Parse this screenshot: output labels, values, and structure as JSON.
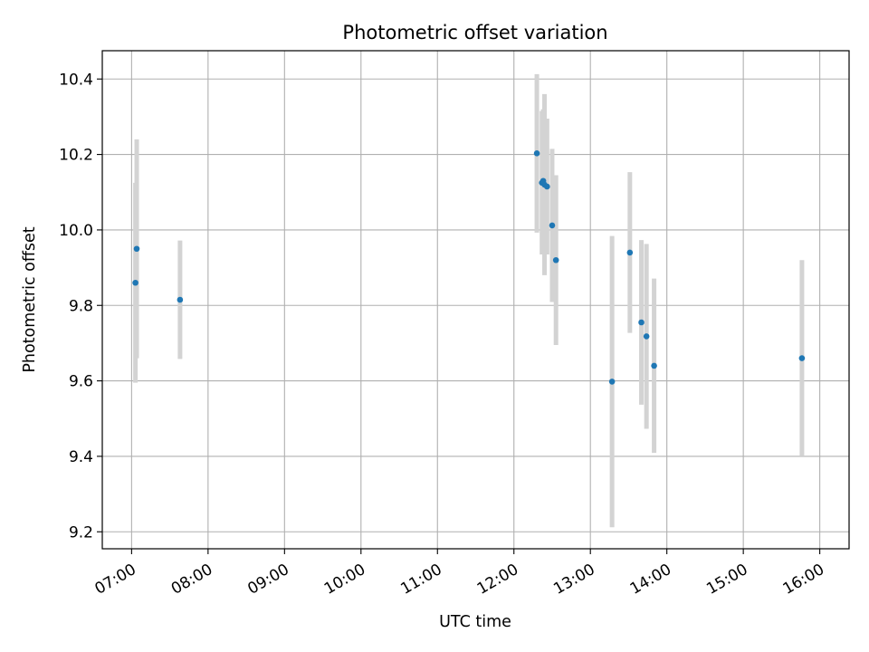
{
  "chart_data": {
    "type": "scatter",
    "title": "Photometric offset variation",
    "xlabel": "UTC time",
    "ylabel": "Photometric offset",
    "xlim": [
      "06:37",
      "16:23"
    ],
    "ylim": [
      9.155,
      10.475
    ],
    "x_ticks": [
      "07:00",
      "08:00",
      "09:00",
      "10:00",
      "11:00",
      "12:00",
      "13:00",
      "14:00",
      "15:00",
      "16:00"
    ],
    "y_ticks": [
      9.2,
      9.4,
      9.6,
      9.8,
      10.0,
      10.2,
      10.4
    ],
    "y_tick_labels": [
      "9.2",
      "9.4",
      "9.6",
      "9.8",
      "10.0",
      "10.2",
      "10.4"
    ],
    "grid": true,
    "marker_color": "#1f77b4",
    "errorbar_color": "#d3d3d3",
    "points": [
      {
        "time": "07:03",
        "value": 9.86,
        "err": 0.265
      },
      {
        "time": "07:04",
        "value": 9.95,
        "err": 0.29
      },
      {
        "time": "07:38",
        "value": 9.815,
        "err": 0.157
      },
      {
        "time": "12:18",
        "value": 10.203,
        "err": 0.21
      },
      {
        "time": "12:22",
        "value": 10.125,
        "err": 0.19
      },
      {
        "time": "12:23",
        "value": 10.13,
        "err": 0.19
      },
      {
        "time": "12:24",
        "value": 10.12,
        "err": 0.24
      },
      {
        "time": "12:26",
        "value": 10.115,
        "err": 0.18
      },
      {
        "time": "12:30",
        "value": 10.012,
        "err": 0.203
      },
      {
        "time": "12:33",
        "value": 9.92,
        "err": 0.225
      },
      {
        "time": "13:17",
        "value": 9.598,
        "err": 0.386
      },
      {
        "time": "13:31",
        "value": 9.94,
        "err": 0.213
      },
      {
        "time": "13:40",
        "value": 9.755,
        "err": 0.218
      },
      {
        "time": "13:44",
        "value": 9.718,
        "err": 0.245
      },
      {
        "time": "13:50",
        "value": 9.64,
        "err": 0.231
      },
      {
        "time": "15:46",
        "value": 9.66,
        "err": 0.26
      }
    ]
  }
}
